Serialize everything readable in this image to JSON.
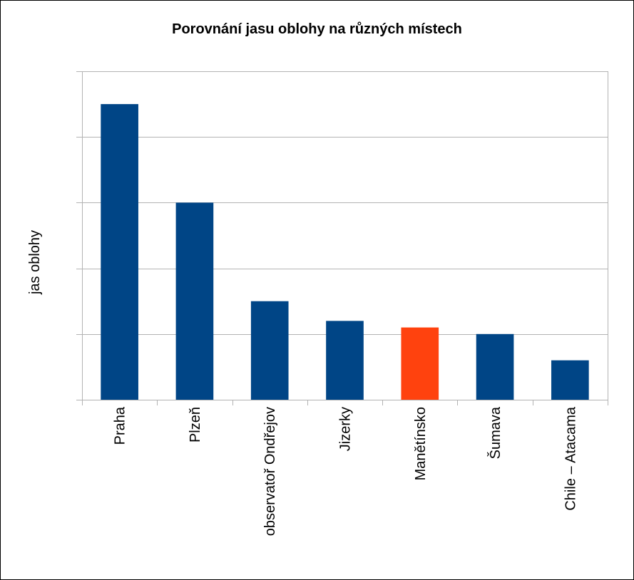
{
  "chart_data": {
    "type": "bar",
    "title": "Porovnání jasu oblohy na různých místech",
    "xlabel": "",
    "ylabel": "jas oblohy",
    "categories": [
      "Praha",
      "Plzeň",
      "observatoř Ondřejov",
      "Jizerky",
      "Manětínsko",
      "Šumava",
      "Chile – Atacama"
    ],
    "values": [
      4.5,
      3.0,
      1.5,
      1.2,
      1.1,
      1.0,
      0.6
    ],
    "ylim": [
      0,
      5
    ],
    "ytick_step": 1,
    "show_ytick_labels": false,
    "grid": true,
    "colors": {
      "default": "#004586",
      "highlight": "#ff420e",
      "grid": "#b3b3b3",
      "axis": "#b3b3b3"
    },
    "highlight_category": "Manětínsko"
  }
}
